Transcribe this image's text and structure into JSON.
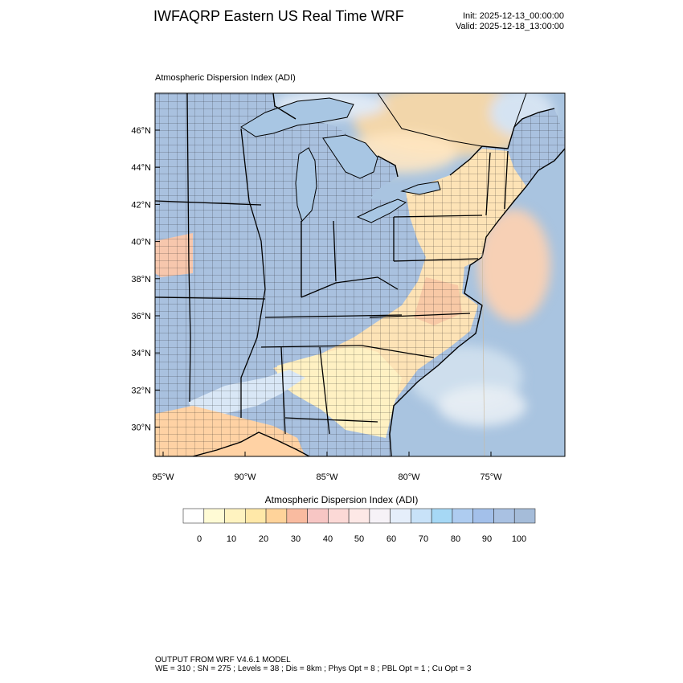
{
  "header": {
    "title": "IWFAQRP Eastern US Real Time WRF",
    "init": "Init: 2025-12-13_00:00:00",
    "valid": "Valid: 2025-12-18_13:00:00"
  },
  "plot": {
    "title": "Atmospheric Dispersion Index   (ADI)",
    "lat_labels": [
      "46°N",
      "44°N",
      "42°N",
      "40°N",
      "38°N",
      "36°N",
      "34°N",
      "32°N",
      "30°N"
    ],
    "lon_labels": [
      "95°W",
      "90°W",
      "85°W",
      "80°W",
      "75°W"
    ]
  },
  "colorbar": {
    "title": "Atmospheric Dispersion Index  (ADI)",
    "tick_labels": [
      "0",
      "10",
      "20",
      "30",
      "40",
      "50",
      "60",
      "70",
      "80",
      "90",
      "100"
    ],
    "colors": [
      "#ffffff",
      "#fffbd5",
      "#fff3c0",
      "#ffe8a8",
      "#ffd39a",
      "#f9bba0",
      "#f7c6c4",
      "#fcd9d6",
      "#fde8e6",
      "#f6f2f7",
      "#e5eefa",
      "#c8e2f8",
      "#a6d8f5",
      "#aeccf0",
      "#a3c0ea",
      "#a9c1e2",
      "#a5bcd9"
    ]
  },
  "footer": {
    "line1": "OUTPUT FROM WRF V4.6.1 MODEL",
    "line2": "WE = 310 ; SN = 275 ; Levels = 38 ; Dis = 8km ; Phys Opt = 8 ; PBL Opt = 1 ; Cu Opt = 3"
  }
}
